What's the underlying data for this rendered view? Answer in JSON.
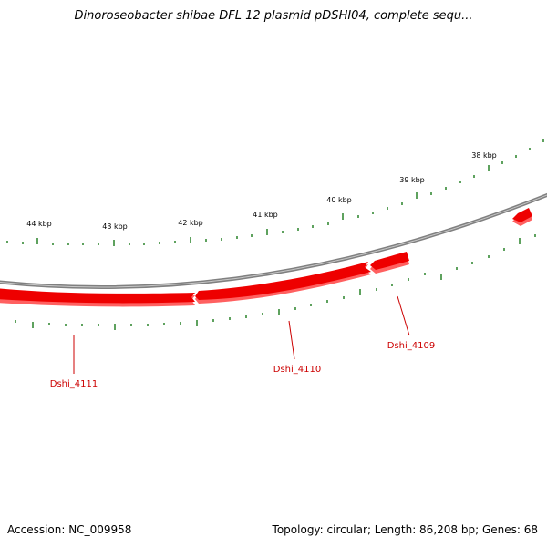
{
  "header": {
    "title": "Dinoroseobacter shibae DFL 12 plasmid pDSHI04, complete sequ..."
  },
  "map": {
    "tick_labels": [
      "44 kbp",
      "43 kbp",
      "42 kbp",
      "41 kbp",
      "40 kbp",
      "39 kbp",
      "38 kbp"
    ],
    "genes": [
      {
        "label": "Dshi_4111",
        "strand": "reverse"
      },
      {
        "label": "Dshi_4110",
        "strand": "reverse"
      },
      {
        "label": "Dshi_4109",
        "strand": "reverse"
      }
    ],
    "colors": {
      "gene": "#ff0000",
      "gene_shadow": "#ff6060",
      "backbone": "#808080",
      "tick": "#1a7a1a",
      "label": "#cc0000"
    }
  },
  "footer": {
    "accession": "Accession: NC_009958",
    "summary": "Topology: circular; Length: 86,208 bp; Genes: 68"
  }
}
